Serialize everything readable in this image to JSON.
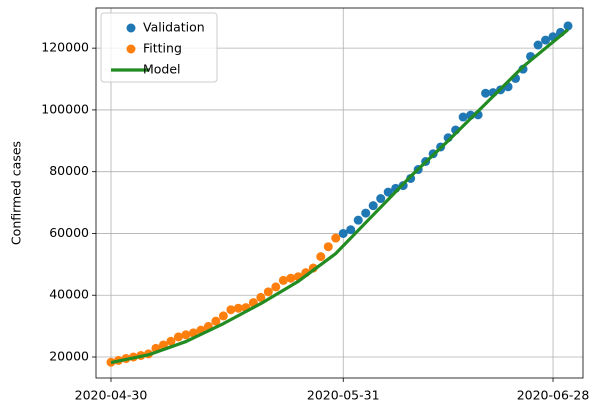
{
  "chart_data": {
    "type": "scatter",
    "ylabel": "Confirmed cases",
    "xlim": [
      "2020-04-28",
      "2020-07-02"
    ],
    "xticks": [
      "2020-04-30",
      "2020-05-31",
      "2020-06-28"
    ],
    "ylim": [
      13200,
      133000
    ],
    "yticks": [
      20000,
      40000,
      60000,
      80000,
      100000,
      120000
    ],
    "grid": true,
    "legend": "upper left",
    "series": [
      {
        "name": "Validation",
        "color": "#1f77b4",
        "style": "markers",
        "x": [
          "2020-05-31",
          "2020-06-01",
          "2020-06-02",
          "2020-06-03",
          "2020-06-04",
          "2020-06-05",
          "2020-06-06",
          "2020-06-07",
          "2020-06-08",
          "2020-06-09",
          "2020-06-10",
          "2020-06-11",
          "2020-06-12",
          "2020-06-13",
          "2020-06-14",
          "2020-06-15",
          "2020-06-16",
          "2020-06-17",
          "2020-06-18",
          "2020-06-19",
          "2020-06-20",
          "2020-06-21",
          "2020-06-22",
          "2020-06-23",
          "2020-06-24",
          "2020-06-25",
          "2020-06-26",
          "2020-06-27",
          "2020-06-28",
          "2020-06-29",
          "2020-06-30"
        ],
        "values": [
          60000,
          61200,
          64300,
          66600,
          69000,
          71300,
          73400,
          74600,
          75500,
          77800,
          80700,
          83300,
          85800,
          88000,
          91000,
          93500,
          97700,
          98300,
          98400,
          105400,
          105600,
          106500,
          107500,
          110200,
          113200,
          117300,
          121000,
          122600,
          123700,
          125100,
          127200
        ]
      },
      {
        "name": "Fitting",
        "color": "#ff7f0e",
        "style": "markers",
        "x": [
          "2020-04-30",
          "2020-05-01",
          "2020-05-02",
          "2020-05-03",
          "2020-05-04",
          "2020-05-05",
          "2020-05-06",
          "2020-05-07",
          "2020-05-08",
          "2020-05-09",
          "2020-05-10",
          "2020-05-11",
          "2020-05-12",
          "2020-05-13",
          "2020-05-14",
          "2020-05-15",
          "2020-05-16",
          "2020-05-17",
          "2020-05-18",
          "2020-05-19",
          "2020-05-20",
          "2020-05-21",
          "2020-05-22",
          "2020-05-23",
          "2020-05-24",
          "2020-05-25",
          "2020-05-26",
          "2020-05-27",
          "2020-05-28",
          "2020-05-29",
          "2020-05-30"
        ],
        "values": [
          18300,
          18900,
          19500,
          20000,
          20500,
          21000,
          22800,
          23900,
          25100,
          26500,
          27200,
          27800,
          28700,
          29900,
          31600,
          33300,
          35300,
          35800,
          36000,
          37600,
          39300,
          41100,
          42700,
          44800,
          45500,
          46000,
          47300,
          48800,
          52500,
          55700,
          58500
        ]
      },
      {
        "name": "Model",
        "color": "#228b22",
        "style": "line",
        "x": [
          "2020-04-30",
          "2020-05-05",
          "2020-05-10",
          "2020-05-15",
          "2020-05-20",
          "2020-05-25",
          "2020-05-30",
          "2020-06-04",
          "2020-06-09",
          "2020-06-14",
          "2020-06-19",
          "2020-06-24",
          "2020-06-30"
        ],
        "values": [
          18200,
          20700,
          25000,
          30800,
          37300,
          44500,
          53500,
          66000,
          78500,
          90000,
          102000,
          114000,
          126000
        ]
      }
    ]
  }
}
